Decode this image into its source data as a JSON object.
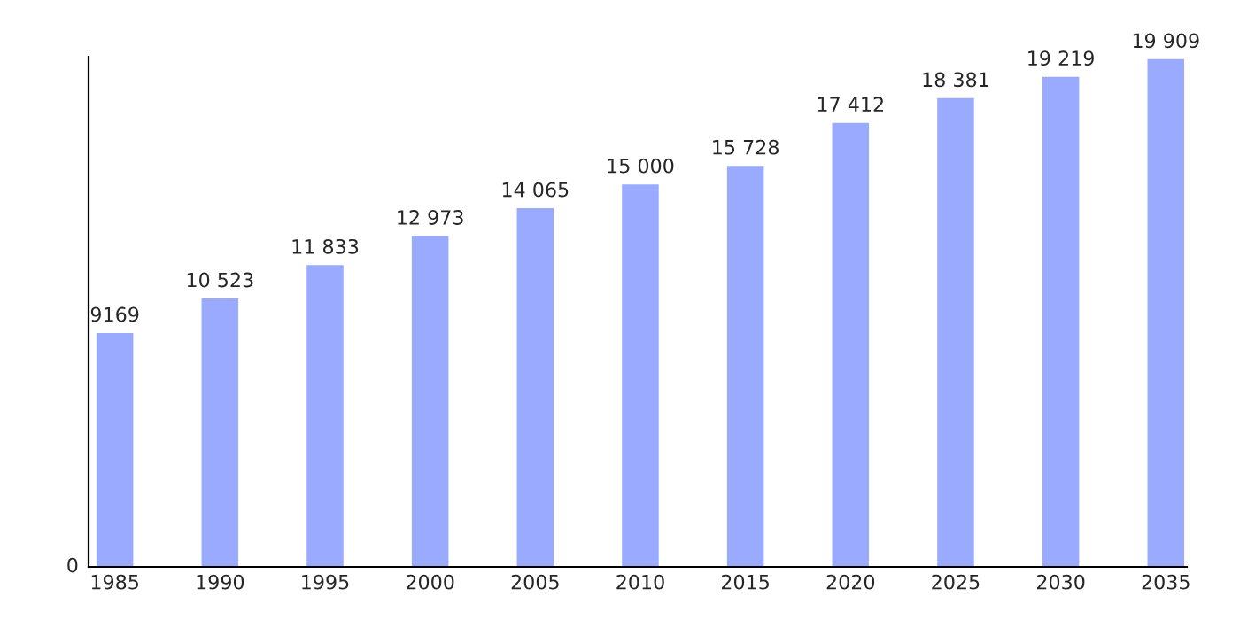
{
  "chart_data": {
    "type": "bar",
    "categories": [
      "1985",
      "1990",
      "1995",
      "2000",
      "2005",
      "2010",
      "2015",
      "2020",
      "2025",
      "2030",
      "2035"
    ],
    "values": [
      9169,
      10523,
      11833,
      12973,
      14065,
      15000,
      15728,
      17412,
      18381,
      19219,
      19909
    ],
    "value_labels": [
      "9169",
      "10 523",
      "11 833",
      "12 973",
      "14 065",
      "15 000",
      "15 728",
      "17 412",
      "18 381",
      "19 219",
      "19 909"
    ],
    "color": "#99aaff",
    "annotations": [
      "0"
    ],
    "grid": false,
    "legend": false
  }
}
